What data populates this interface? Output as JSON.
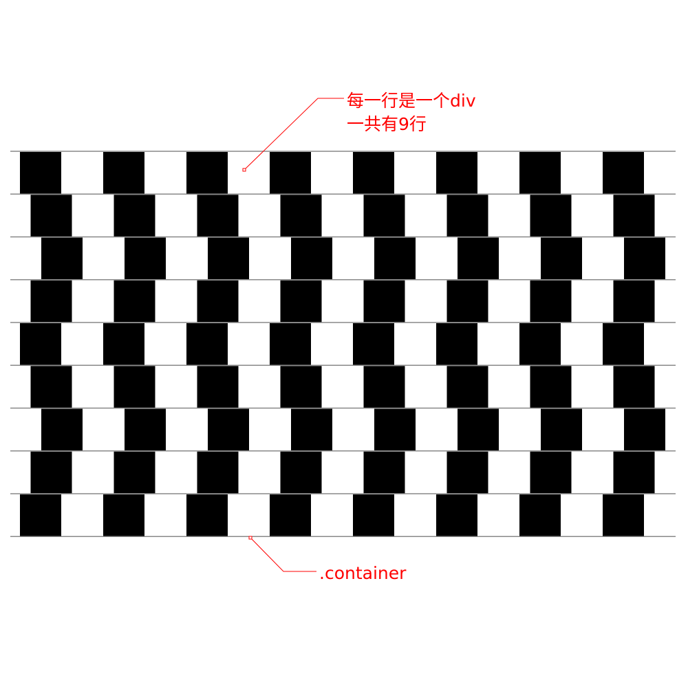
{
  "illusion": {
    "rows": 9,
    "tiles_per_row": 8,
    "row_offset_pattern": [
      0,
      1,
      2,
      1,
      0,
      1,
      2,
      1,
      0
    ],
    "tile_color": "#000000",
    "background_color": "#ffffff",
    "mortar_color": "#888888"
  },
  "annotations": {
    "row_note_line1": "每一行是一个div",
    "row_note_line2": "一共有9行",
    "container_note": ".container",
    "color": "#ff0000"
  }
}
